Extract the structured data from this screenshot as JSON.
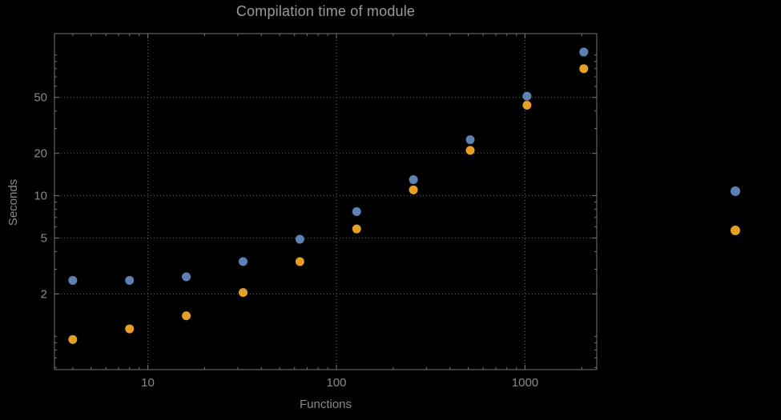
{
  "title": "Compilation time of module",
  "chart_data": {
    "type": "scatter",
    "title": "Compilation time of module",
    "xlabel": "Functions",
    "ylabel": "Seconds",
    "grid": "dotted",
    "legend_position": "outside-right",
    "x_axis": {
      "label": "Functions",
      "scale": "log",
      "ticks": [
        10,
        100,
        1000
      ],
      "range": [
        3.2,
        2400
      ]
    },
    "y_axis": {
      "label": "Seconds",
      "scale": "log",
      "ticks": [
        2,
        5,
        10,
        20,
        50
      ],
      "range": [
        0.58,
        142
      ]
    },
    "x": [
      4,
      8,
      16,
      32,
      64,
      128,
      256,
      512,
      1024,
      2048
    ],
    "series": [
      {
        "name": "series-1",
        "color": "#5e81b5",
        "values": [
          2.5,
          2.5,
          2.65,
          3.4,
          4.9,
          7.7,
          13,
          25,
          51,
          105
        ]
      },
      {
        "name": "series-2",
        "color": "#e5a024",
        "values": [
          0.95,
          1.13,
          1.4,
          2.05,
          3.4,
          5.8,
          11,
          21,
          44,
          80
        ]
      }
    ],
    "legend": {
      "markers": [
        {
          "series": "series-1",
          "color": "#5e81b5"
        },
        {
          "series": "series-2",
          "color": "#e5a024"
        }
      ]
    }
  },
  "colors": {
    "background": "#000000",
    "frame": "#757575",
    "grid": "#5f5f5f",
    "text": "#8a8a8a",
    "title_text": "#9a9a9a"
  }
}
